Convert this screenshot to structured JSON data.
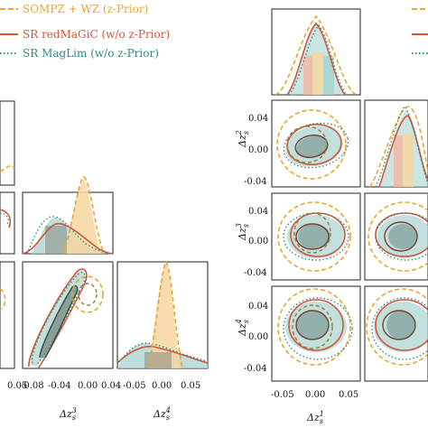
{
  "colors": {
    "sompz": "#e8a630",
    "redmagic": "#d0573a",
    "maglim": "#2e8b7f",
    "fill_sompz": "#f6d6a0",
    "fill_redmagic": "#f2b8a8",
    "fill_maglim": "#a8d3cf",
    "dark_inner": "#8a5a3a"
  },
  "legend": {
    "items": [
      {
        "label": "SOMPZ + WZ (z-Prior)",
        "style": "dashed",
        "color": "#e8a630"
      },
      {
        "label": "SR redMaGiC (w/o z-Prior)",
        "style": "solid",
        "color": "#d0573a"
      },
      {
        "label": "SR MagLim (w/o z-Prior)",
        "style": "dotted",
        "color": "#2e8b7f"
      }
    ]
  },
  "chart_data": [
    {
      "type": "corner",
      "panel": "left",
      "parameters": [
        "Δz_s^1",
        "Δz_s^2",
        "Δz_s^3",
        "Δz_s^4"
      ],
      "x_axis_labels": [
        "Δz_s^4"
      ],
      "x_ticks_col2": [
        "-0.08",
        "-0.04",
        "0.00",
        "0.04"
      ],
      "x_ticks_col3": [
        "-0.05",
        "0.00",
        "0.05"
      ],
      "x_ticks_col1_partial": [
        "0.05"
      ],
      "series": [
        {
          "name": "SOMPZ + WZ (z-Prior)",
          "mean": [
            0.0,
            0.0,
            0.0,
            0.0
          ]
        },
        {
          "name": "SR redMaGiC (w/o z-Prior)",
          "mean": [
            0.0,
            0.0,
            -0.03,
            -0.02
          ]
        },
        {
          "name": "SR MagLim (w/o z-Prior)",
          "mean": [
            0.0,
            0.0,
            -0.05,
            -0.03
          ]
        }
      ]
    },
    {
      "type": "corner",
      "panel": "right",
      "parameters": [
        "Δz_s^1",
        "Δz_s^2",
        "Δz_s^3",
        "Δz_s^4"
      ],
      "y_axis_labels": [
        "Δz_s^2",
        "Δz_s^3",
        "Δz_s^4"
      ],
      "x_axis_labels": [
        "Δz_s^1"
      ],
      "x_ticks": [
        "-0.05",
        "0.00",
        "0.05"
      ],
      "y_ticks": [
        "0.04",
        "0.00",
        "-0.04"
      ],
      "series": [
        {
          "name": "SOMPZ + WZ (z-Prior)",
          "mean": [
            0.0,
            0.0,
            0.0,
            0.0
          ]
        },
        {
          "name": "SR redMaGiC (w/o z-Prior)",
          "mean": [
            0.0,
            -0.01,
            0.0,
            0.0
          ]
        },
        {
          "name": "SR MagLim (w/o z-Prior)",
          "mean": [
            0.005,
            -0.005,
            0.0,
            0.0
          ]
        }
      ]
    }
  ],
  "labels": {
    "l_x_col2": "Δz",
    "l_x_col2_sup": "3",
    "l_x_col3": "Δz",
    "l_x_col3_sup": "4",
    "r_x_col1": "Δz",
    "r_x_col1_sup": "1",
    "r_y_row1": "Δz",
    "r_y_row1_sup": "2",
    "r_y_row2": "Δz",
    "r_y_row2_sup": "3",
    "r_y_row3": "Δz",
    "r_y_row3_sup": "4",
    "sub": "s",
    "l_tick_c1": "0.05",
    "l_tick_c2a": "-0.08",
    "l_tick_c2b": "-0.04",
    "l_tick_c2c": "0.00",
    "l_tick_c2d": "0.04",
    "l_tick_c3a": "-0.05",
    "l_tick_c3b": "0.00",
    "l_tick_c3c": "0.05",
    "r_tick_xa": "-0.05",
    "r_tick_xb": "0.00",
    "r_tick_xc": "0.05",
    "r_tick_y1a": "0.04",
    "r_tick_y1b": "0.00",
    "r_tick_y1c": "-0.04",
    "r_tick_y2a": "0.04",
    "r_tick_y2b": "0.00",
    "r_tick_y2c": "-0.04",
    "r_tick_y3a": "0.04",
    "r_tick_y3b": "0.00",
    "r_tick_y3c": "-0.04"
  }
}
